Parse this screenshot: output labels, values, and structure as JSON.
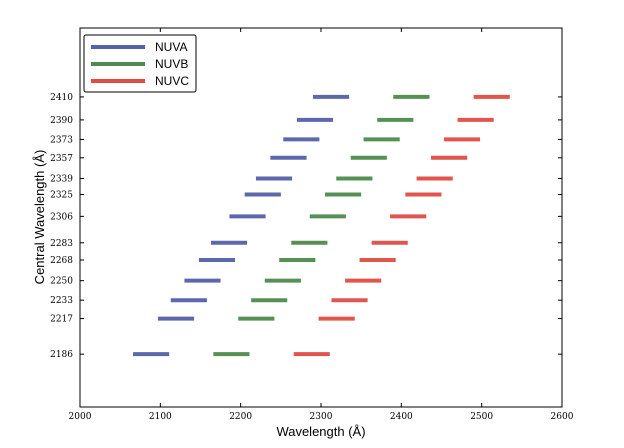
{
  "chart_data": {
    "type": "range-bar",
    "xlabel": "Wavelength (Å)",
    "ylabel": "Central Wavelength (Å)",
    "xlim": [
      2000,
      2600
    ],
    "ylim": [
      2140,
      2470
    ],
    "xticks": [
      2000,
      2100,
      2200,
      2300,
      2400,
      2500,
      2600
    ],
    "yticks": [
      2186,
      2217,
      2233,
      2250,
      2268,
      2283,
      2306,
      2325,
      2339,
      2357,
      2373,
      2390,
      2410
    ],
    "xtick_labels": [
      "2000",
      "2100",
      "2200",
      "2300",
      "2400",
      "2500",
      "2600"
    ],
    "ytick_labels": [
      "2186",
      "2217",
      "2233",
      "2250",
      "2268",
      "2283",
      "2306",
      "2325",
      "2339",
      "2357",
      "2373",
      "2390",
      "2410"
    ],
    "legend_position": "top-left",
    "series": [
      {
        "name": "NUVA",
        "color": "#5560a8",
        "ranges": [
          {
            "central": 2186,
            "start": 2066,
            "end": 2111
          },
          {
            "central": 2217,
            "start": 2097,
            "end": 2142
          },
          {
            "central": 2233,
            "start": 2113,
            "end": 2158
          },
          {
            "central": 2250,
            "start": 2130,
            "end": 2175
          },
          {
            "central": 2268,
            "start": 2148,
            "end": 2193
          },
          {
            "central": 2283,
            "start": 2163,
            "end": 2208
          },
          {
            "central": 2306,
            "start": 2186,
            "end": 2231
          },
          {
            "central": 2325,
            "start": 2205,
            "end": 2250
          },
          {
            "central": 2339,
            "start": 2219,
            "end": 2264
          },
          {
            "central": 2357,
            "start": 2237,
            "end": 2282
          },
          {
            "central": 2373,
            "start": 2253,
            "end": 2298
          },
          {
            "central": 2390,
            "start": 2270,
            "end": 2315
          },
          {
            "central": 2410,
            "start": 2290,
            "end": 2335
          }
        ]
      },
      {
        "name": "NUVB",
        "color": "#4e8b4c",
        "ranges": [
          {
            "central": 2186,
            "start": 2166,
            "end": 2211
          },
          {
            "central": 2217,
            "start": 2197,
            "end": 2242
          },
          {
            "central": 2233,
            "start": 2213,
            "end": 2258
          },
          {
            "central": 2250,
            "start": 2230,
            "end": 2275
          },
          {
            "central": 2268,
            "start": 2248,
            "end": 2293
          },
          {
            "central": 2283,
            "start": 2263,
            "end": 2308
          },
          {
            "central": 2306,
            "start": 2286,
            "end": 2331
          },
          {
            "central": 2325,
            "start": 2305,
            "end": 2350
          },
          {
            "central": 2339,
            "start": 2319,
            "end": 2364
          },
          {
            "central": 2357,
            "start": 2337,
            "end": 2382
          },
          {
            "central": 2373,
            "start": 2353,
            "end": 2398
          },
          {
            "central": 2390,
            "start": 2370,
            "end": 2415
          },
          {
            "central": 2410,
            "start": 2390,
            "end": 2435
          }
        ]
      },
      {
        "name": "NUVC",
        "color": "#e04c45",
        "ranges": [
          {
            "central": 2186,
            "start": 2266,
            "end": 2311
          },
          {
            "central": 2217,
            "start": 2297,
            "end": 2342
          },
          {
            "central": 2233,
            "start": 2313,
            "end": 2358
          },
          {
            "central": 2250,
            "start": 2330,
            "end": 2375
          },
          {
            "central": 2268,
            "start": 2348,
            "end": 2393
          },
          {
            "central": 2283,
            "start": 2363,
            "end": 2408
          },
          {
            "central": 2306,
            "start": 2386,
            "end": 2431
          },
          {
            "central": 2325,
            "start": 2405,
            "end": 2450
          },
          {
            "central": 2339,
            "start": 2419,
            "end": 2464
          },
          {
            "central": 2357,
            "start": 2437,
            "end": 2482
          },
          {
            "central": 2373,
            "start": 2453,
            "end": 2498
          },
          {
            "central": 2390,
            "start": 2470,
            "end": 2515
          },
          {
            "central": 2410,
            "start": 2490,
            "end": 2535
          }
        ]
      }
    ]
  }
}
